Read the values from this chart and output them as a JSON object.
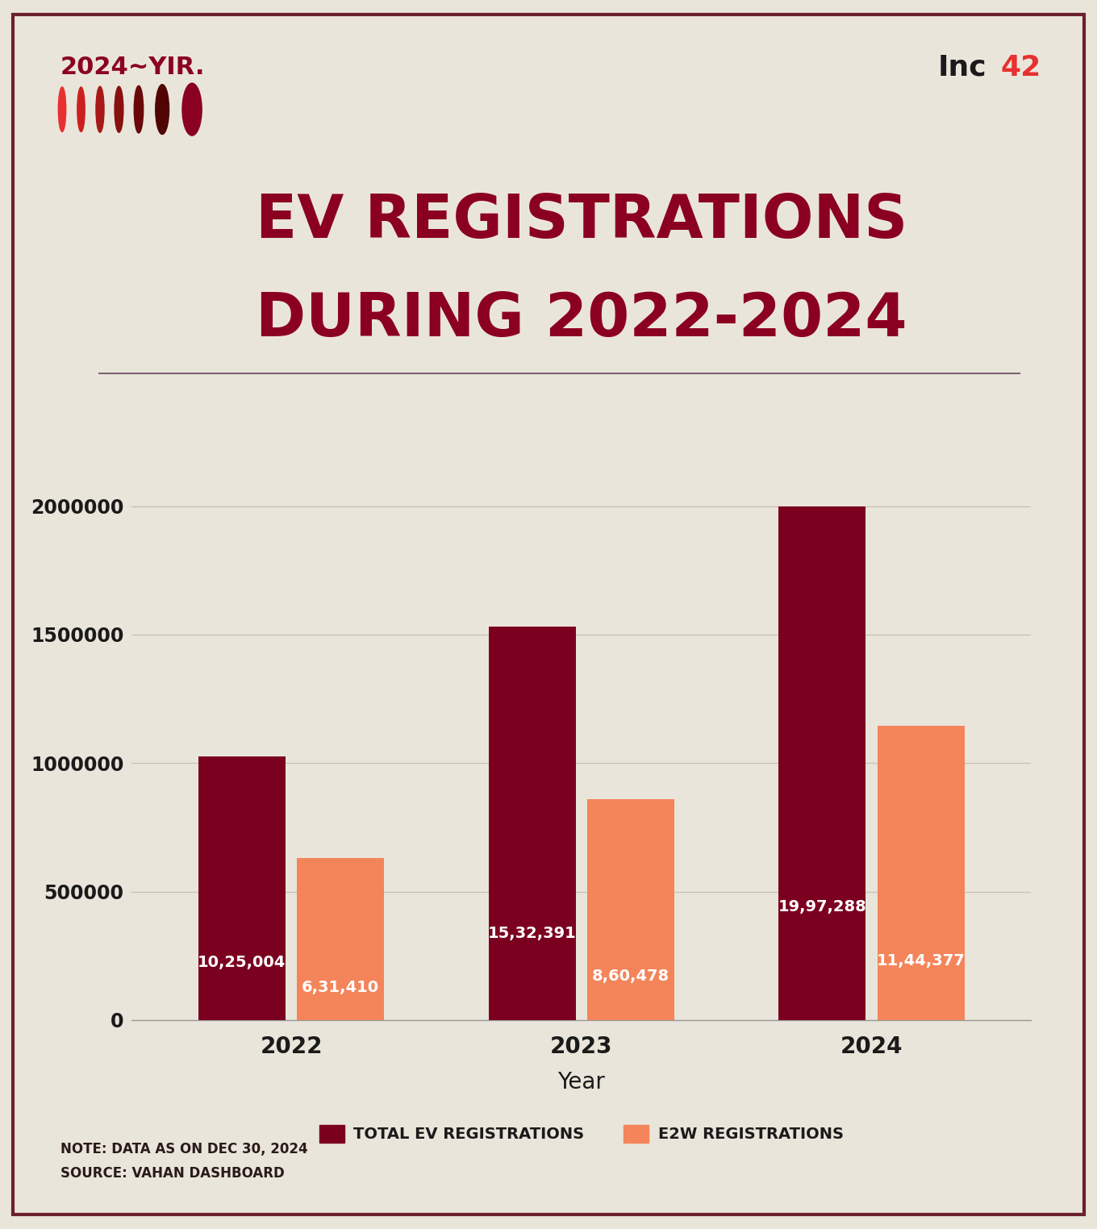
{
  "title_line1": "EV REGISTRATIONS",
  "title_line2": "DURING 2022-2024",
  "title_color": "#8B0020",
  "background_color": "#EAE5DA",
  "border_color": "#6B2030",
  "years": [
    "2022",
    "2023",
    "2024"
  ],
  "total_ev": [
    1025004,
    1532391,
    1997288
  ],
  "e2w": [
    631410,
    860478,
    1144377
  ],
  "total_ev_labels": [
    "10,25,004",
    "15,32,391",
    "19,97,288"
  ],
  "e2w_labels": [
    "6,31,410",
    "8,60,478",
    "11,44,377"
  ],
  "total_ev_color": "#7B0020",
  "e2w_color": "#F4845A",
  "bar_width": 0.3,
  "ylim": [
    0,
    2200000
  ],
  "yticks": [
    0,
    500000,
    1000000,
    1500000,
    2000000
  ],
  "ytick_labels": [
    "0",
    "500000",
    "1000000",
    "1500000",
    "2000000"
  ],
  "xlabel": "Year",
  "legend_label_total": "TOTAL EV REGISTRATIONS",
  "legend_label_e2w": "E2W REGISTRATIONS",
  "note_line1": "NOTE: DATA AS ON DEC 30, 2024",
  "note_line2": "SOURCE: VAHAN DASHBOARD",
  "header_text": "2024~YIR.",
  "header_color": "#8B0020",
  "grid_color": "#C8C0B0",
  "axis_label_color": "#1A1A1A",
  "divider_color": "#7A6070",
  "label_text_color": "#FFFFFF",
  "moon_colors": [
    "#E83030",
    "#CC2020",
    "#B01818",
    "#901010",
    "#700808",
    "#500404",
    "#8B0020"
  ],
  "inc_color": "#1A1A1A",
  "num42_color": "#E83030"
}
